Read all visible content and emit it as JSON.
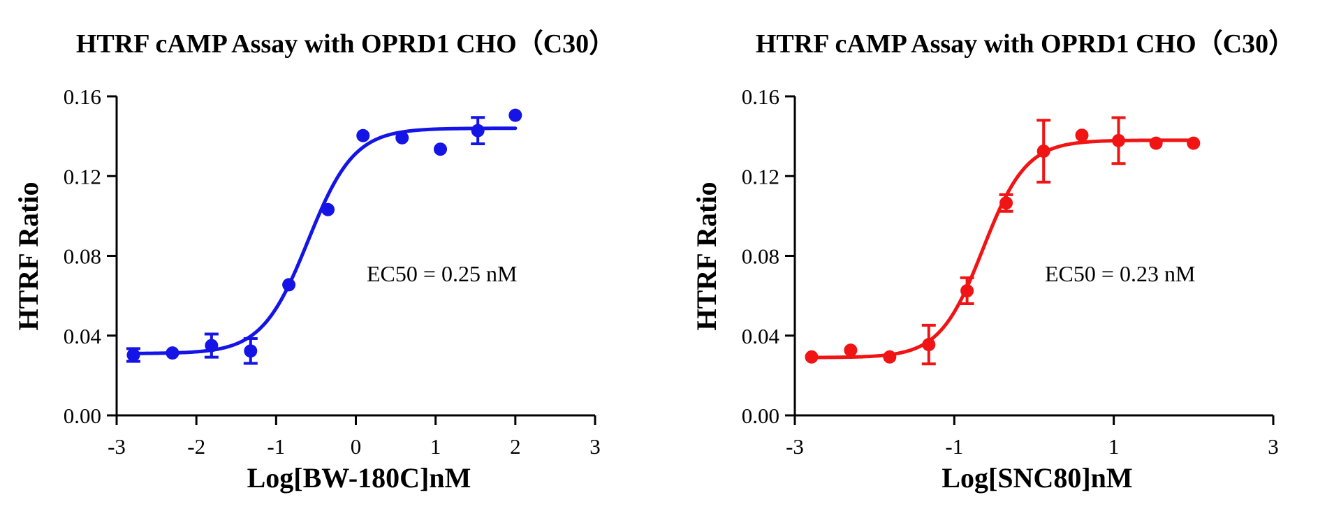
{
  "chart_data": [
    {
      "type": "scatter",
      "title": "HTRF cAMP Assay with OPRD1 CHO（C30）",
      "xlabel": "Log[BW-180C]nM",
      "ylabel": "HTRF Ratio",
      "annotation": "EC50 = 0.25 nM",
      "color": "#1414e6",
      "xlim": [
        -3,
        3
      ],
      "ylim": [
        0,
        0.16
      ],
      "xticks": [
        -3,
        -2,
        -1,
        0,
        1,
        2,
        3
      ],
      "xtick_labels": [
        "-3",
        "-2",
        "-1",
        "0",
        "1",
        "2",
        "3"
      ],
      "yticks": [
        0,
        0.04,
        0.08,
        0.12,
        0.16
      ],
      "ytick_labels": [
        "0.00",
        "0.04",
        "0.08",
        "0.12",
        "0.16"
      ],
      "points": [
        {
          "x": -2.79,
          "y": 0.0303,
          "err": 0.0032
        },
        {
          "x": -2.3,
          "y": 0.0313,
          "err": 0
        },
        {
          "x": -1.81,
          "y": 0.035,
          "err": 0.0058
        },
        {
          "x": -1.32,
          "y": 0.0323,
          "err": 0.0062
        },
        {
          "x": -0.84,
          "y": 0.0655,
          "err": 0
        },
        {
          "x": -0.35,
          "y": 0.1032,
          "err": 0
        },
        {
          "x": 0.09,
          "y": 0.1403,
          "err": 0
        },
        {
          "x": 0.58,
          "y": 0.1392,
          "err": 0
        },
        {
          "x": 1.06,
          "y": 0.1335,
          "err": 0
        },
        {
          "x": 1.53,
          "y": 0.1428,
          "err": 0.0066
        },
        {
          "x": 2.0,
          "y": 0.1505,
          "err": 0
        }
      ],
      "fit": {
        "bottom": 0.031,
        "top": 0.144,
        "logEC50": -0.6,
        "hill": 1.5
      }
    },
    {
      "type": "scatter",
      "title": "HTRF cAMP Assay with OPRD1 CHO（C30）",
      "xlabel": "Log[SNC80]nM",
      "ylabel": "HTRF Ratio",
      "annotation": "EC50 = 0.23 nM",
      "color": "#f01414",
      "xlim": [
        -3,
        3
      ],
      "ylim": [
        0,
        0.16
      ],
      "xticks": [
        -3,
        -1,
        1,
        3
      ],
      "xtick_labels": [
        "-3",
        "-1",
        "1",
        "3"
      ],
      "yticks": [
        0,
        0.04,
        0.08,
        0.12,
        0.16
      ],
      "ytick_labels": [
        "0.00",
        "0.04",
        "0.08",
        "0.12",
        "0.16"
      ],
      "points": [
        {
          "x": -2.79,
          "y": 0.0293,
          "err": 0
        },
        {
          "x": -2.3,
          "y": 0.0327,
          "err": 0
        },
        {
          "x": -1.81,
          "y": 0.0293,
          "err": 0
        },
        {
          "x": -1.32,
          "y": 0.0355,
          "err": 0.0097
        },
        {
          "x": -0.84,
          "y": 0.0625,
          "err": 0.0065
        },
        {
          "x": -0.35,
          "y": 0.1065,
          "err": 0.0042
        },
        {
          "x": 0.12,
          "y": 0.1325,
          "err": 0.0155
        },
        {
          "x": 0.6,
          "y": 0.1405,
          "err": 0
        },
        {
          "x": 1.06,
          "y": 0.1378,
          "err": 0.0115
        },
        {
          "x": 1.53,
          "y": 0.1365,
          "err": 0
        },
        {
          "x": 2.0,
          "y": 0.1365,
          "err": 0
        }
      ],
      "fit": {
        "bottom": 0.029,
        "top": 0.138,
        "logEC50": -0.64,
        "hill": 1.6
      }
    }
  ]
}
